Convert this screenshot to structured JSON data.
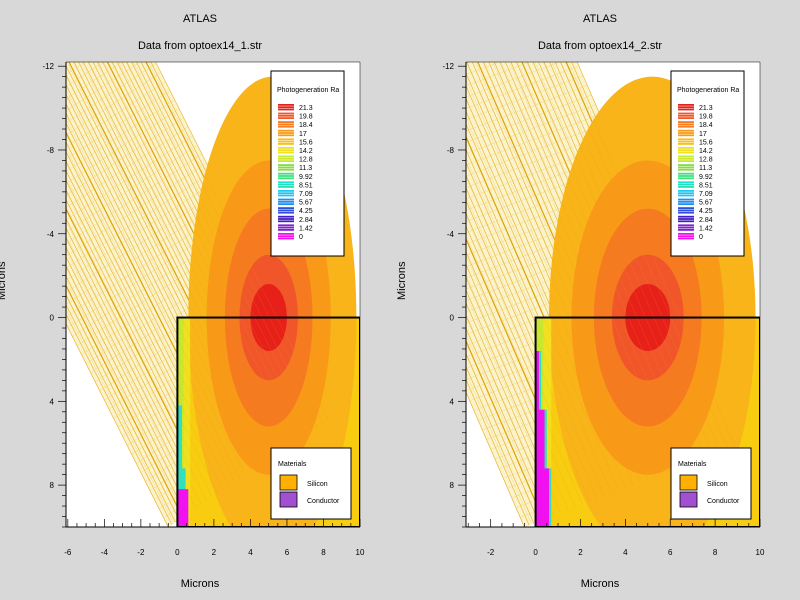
{
  "chart_data": [
    {
      "type": "heatmap",
      "title": "ATLAS",
      "subtitle": "Data from optoex14_1.str",
      "xlabel": "Microns",
      "ylabel": "Microns",
      "xlim": [
        -6.1,
        10
      ],
      "ylim": [
        10,
        -12.2
      ],
      "y_inverted": true,
      "x_ticks": [
        -6,
        -4,
        -2,
        0,
        2,
        4,
        6,
        8,
        10
      ],
      "y_ticks": [
        -12,
        -8,
        -4,
        0,
        4,
        8
      ],
      "beam_angle_deg": 30,
      "legend": {
        "title": "Photogeneration Ra",
        "placement": "top-right",
        "levels": [
          "21.3",
          "19.8",
          "18.4",
          "17",
          "15.6",
          "14.2",
          "12.8",
          "11.3",
          "9.92",
          "8.51",
          "7.09",
          "5.67",
          "4.25",
          "2.84",
          "1.42",
          "0"
        ],
        "colors": [
          "#e8201a",
          "#f0562a",
          "#f57a20",
          "#f89a18",
          "#f8c018",
          "#f0e020",
          "#c8e830",
          "#80e040",
          "#40e080",
          "#20e0c0",
          "#20c8f0",
          "#2090f0",
          "#3050e0",
          "#4020c0",
          "#8020d0",
          "#f010f0"
        ]
      },
      "materials_legend": {
        "title": "Materials",
        "placement": "bottom-right",
        "items": [
          {
            "name": "Silicon",
            "color": "#ffb000"
          },
          {
            "name": "Conductor",
            "color": "#a050d0"
          }
        ]
      },
      "silicon_region": {
        "x": [
          0,
          10
        ],
        "y": [
          0,
          10
        ]
      },
      "contact_edge": [
        [
          0,
          4.2
        ],
        [
          0.25,
          4.2
        ],
        [
          0.25,
          7.2
        ],
        [
          0.45,
          7.2
        ],
        [
          0.45,
          8.2
        ],
        [
          0.6,
          10
        ]
      ],
      "conductor": [
        [
          0,
          8.2
        ],
        [
          0.6,
          8.2
        ],
        [
          0.6,
          10
        ],
        [
          0,
          10
        ]
      ]
    },
    {
      "type": "heatmap",
      "title": "ATLAS",
      "subtitle": "Data from optoex14_2.str",
      "xlabel": "Microns",
      "ylabel": "Microns",
      "xlim": [
        -3.1,
        10
      ],
      "ylim": [
        10,
        -12.2
      ],
      "y_inverted": true,
      "x_ticks": [
        -2,
        0,
        2,
        4,
        6,
        8,
        10
      ],
      "y_ticks": [
        -12,
        -8,
        -4,
        0,
        4,
        8
      ],
      "beam_angle_deg": 22,
      "legend": {
        "title": "Photogeneration Ra",
        "placement": "top-right",
        "levels": [
          "21.3",
          "19.8",
          "18.4",
          "17",
          "15.6",
          "14.2",
          "12.8",
          "11.3",
          "9.92",
          "8.51",
          "7.09",
          "5.67",
          "4.25",
          "2.84",
          "1.42",
          "0"
        ],
        "colors": [
          "#e8201a",
          "#f0562a",
          "#f57a20",
          "#f89a18",
          "#f8c018",
          "#f0e020",
          "#c8e830",
          "#80e040",
          "#40e080",
          "#20e0c0",
          "#20c8f0",
          "#2090f0",
          "#3050e0",
          "#4020c0",
          "#8020d0",
          "#f010f0"
        ]
      },
      "materials_legend": {
        "title": "Materials",
        "placement": "bottom-right",
        "items": [
          {
            "name": "Silicon",
            "color": "#ffb000"
          },
          {
            "name": "Conductor",
            "color": "#a050d0"
          }
        ]
      },
      "silicon_region": {
        "x": [
          0,
          10
        ],
        "y": [
          0,
          10
        ]
      },
      "contact_edge": [
        [
          0,
          1.6
        ],
        [
          0.25,
          1.6
        ],
        [
          0.25,
          4.4
        ],
        [
          0.5,
          4.4
        ],
        [
          0.5,
          7.2
        ],
        [
          0.7,
          7.2
        ],
        [
          0.7,
          10
        ]
      ],
      "conductor": [
        [
          0,
          1.6
        ],
        [
          0.15,
          1.6
        ],
        [
          0.15,
          4.4
        ],
        [
          0.4,
          4.4
        ],
        [
          0.4,
          7.2
        ],
        [
          0.6,
          7.2
        ],
        [
          0.6,
          10
        ],
        [
          0,
          10
        ]
      ]
    }
  ]
}
